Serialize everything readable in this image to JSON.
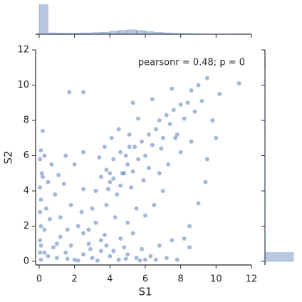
{
  "chart_data": [
    {
      "type": "scatter",
      "xlabel": "S1",
      "ylabel": "S2",
      "annotation": "pearsonr = 0.48; p = 0",
      "color": "#4c72b0",
      "xlim": [
        -0.2,
        12
      ],
      "ylim": [
        -0.2,
        12
      ],
      "xticks": [
        0,
        2,
        4,
        6,
        8,
        10,
        12
      ],
      "yticks": [
        0,
        2,
        4,
        6,
        8,
        10,
        12
      ],
      "x": [
        0.1,
        0.5,
        1.0,
        1.5,
        2.0,
        2.5,
        3.0,
        3.5,
        4.0,
        4.5,
        5.0,
        5.5,
        6.0,
        6.3,
        0.8,
        1.8,
        2.8,
        3.8,
        4.8,
        5.8,
        2.2,
        3.3,
        4.2,
        6.6,
        7.2,
        7.8,
        8.2,
        8.5,
        7.5,
        6.8,
        1.2,
        2.5,
        3.7,
        4.6,
        5.3,
        0.3,
        1.6,
        4.9,
        5.7,
        2.9,
        0.05,
        0.05,
        0.1,
        0.05,
        0.1,
        0.05,
        0.15,
        0.05,
        0.1,
        0.2,
        0.3,
        0.4,
        0.5,
        0.7,
        0.3,
        0.6,
        0.9,
        1.1,
        0.2,
        0.1,
        1.2,
        1.8,
        2.2,
        2.5,
        3.0,
        1.5,
        2.0,
        2.5,
        3.2,
        2.8,
        1.0,
        1.6,
        2.4,
        3.5,
        1.4,
        1.7,
        2.5,
        4.7,
        3.2,
        3.5,
        3.8,
        4.0,
        4.2,
        4.4,
        4.6,
        4.8,
        5.0,
        5.2,
        5.4,
        5.6,
        5.8,
        6.0,
        6.2,
        6.4,
        6.6,
        6.8,
        7.0,
        7.2,
        7.4,
        7.6,
        7.8,
        8.0,
        8.2,
        8.4,
        8.6,
        8.8,
        9.0,
        9.2,
        9.5,
        10.2,
        11.3,
        10.0,
        9.8,
        9.5,
        9.4,
        9.0,
        8.5,
        7.0,
        6.5,
        6.0,
        5.5,
        5.0,
        4.3,
        3.8,
        3.4,
        3.7,
        4.1,
        4.5,
        5.1,
        5.6,
        5.3,
        6.4,
        7.5,
        6.8,
        7.3,
        8.0,
        8.6,
        4.0,
        4.2,
        4.9,
        5.3,
        5.9,
        4.6,
        3.9,
        5.1,
        6.2,
        6.9,
        7.7
      ],
      "y": [
        0.1,
        0.3,
        0.2,
        0.5,
        0.1,
        0.4,
        0.2,
        0.6,
        0.3,
        0.1,
        0.4,
        0.2,
        0.1,
        0.3,
        0.8,
        0.9,
        1.0,
        0.9,
        0.8,
        0.7,
        0.05,
        0.05,
        0.6,
        0.1,
        0.2,
        0.1,
        1.3,
        0.8,
        1.2,
        0.9,
        1.4,
        1.6,
        1.5,
        1.3,
        1.6,
        0.5,
        0.15,
        0.15,
        0.05,
        0.7,
        0.5,
        1.2,
        2.0,
        2.8,
        3.5,
        4.2,
        5.0,
        5.8,
        6.3,
        7.4,
        1.8,
        3.0,
        4.5,
        5.5,
        6.0,
        2.4,
        3.8,
        4.9,
        4.8,
        0.9,
        2.5,
        3.2,
        2.0,
        4.1,
        3.0,
        6.0,
        5.5,
        6.2,
        2.2,
        1.8,
        1.0,
        1.8,
        2.8,
        1.2,
        4.4,
        9.6,
        9.6,
        5.0,
        4.0,
        4.8,
        5.2,
        4.5,
        5.8,
        3.8,
        6.2,
        5.0,
        5.5,
        4.2,
        6.5,
        5.8,
        6.8,
        6.0,
        7.2,
        6.6,
        7.5,
        8.0,
        7.0,
        8.3,
        7.8,
        8.6,
        7.2,
        8.9,
        8.1,
        9.0,
        9.7,
        8.5,
        10.0,
        9.1,
        10.4,
        9.5,
        10.1,
        7.0,
        8.0,
        5.8,
        4.5,
        3.3,
        2.0,
        4.0,
        3.2,
        2.6,
        3.0,
        2.2,
        2.5,
        3.2,
        5.9,
        6.5,
        7.0,
        7.5,
        7.2,
        8.1,
        9.0,
        9.2,
        9.8,
        5.0,
        5.5,
        6.2,
        6.8,
        5.0,
        4.7,
        6.0,
        5.1,
        4.6,
        4.3,
        4.1,
        6.5,
        5.3,
        6.4,
        7.0
      ]
    },
    {
      "type": "histogram",
      "orientation": "vertical",
      "color": "#4c72b0",
      "ylim": [
        0,
        1350
      ],
      "bins": [
        0,
        0.5,
        1,
        1.5,
        2,
        2.5,
        3,
        3.5,
        4,
        4.5,
        5,
        5.5,
        6,
        6.5,
        7,
        7.5,
        8,
        8.5,
        9,
        9.5,
        10,
        10.5,
        11,
        11.5,
        12
      ],
      "counts": [
        1300,
        60,
        50,
        45,
        55,
        60,
        70,
        90,
        130,
        170,
        190,
        160,
        110,
        80,
        60,
        40,
        30,
        20,
        10,
        6,
        3,
        2,
        1,
        1
      ]
    },
    {
      "type": "histogram",
      "orientation": "horizontal",
      "color": "#4c72b0",
      "xlim": [
        0,
        1500
      ],
      "bins": [
        0,
        0.5,
        1,
        1.5,
        2,
        2.5,
        3,
        3.5,
        4,
        4.5,
        5,
        5.5,
        6,
        6.5,
        7,
        7.5,
        8,
        8.5,
        9,
        9.5,
        10,
        10.5,
        11,
        11.5,
        12
      ],
      "counts": [
        1500,
        20,
        15,
        12,
        10,
        10,
        12,
        12,
        10,
        8,
        8,
        7,
        6,
        5,
        4,
        4,
        3,
        3,
        2,
        1,
        1,
        1,
        0,
        0
      ]
    }
  ]
}
